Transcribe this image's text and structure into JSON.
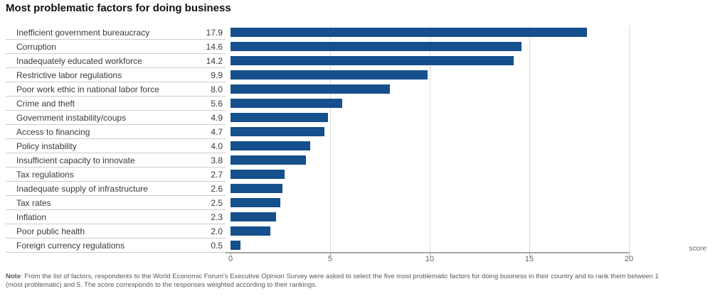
{
  "title": "Most problematic factors for doing business",
  "colors": {
    "bar": "#15508c",
    "gridline": "#dcdcdc",
    "axis_line": "#a6a6a6",
    "separator": "#cccccc",
    "label_text": "#3a3a3a",
    "tick_text": "#666666",
    "note_text": "#58595b"
  },
  "chart_data": {
    "type": "bar",
    "orientation": "horizontal",
    "title": "Most problematic factors for doing business",
    "xlabel": "score",
    "ylabel": "",
    "xlim": [
      0,
      20
    ],
    "xticks": [
      0,
      5,
      10,
      15,
      20
    ],
    "grid": true,
    "legend": false,
    "categories": [
      "Inefficient government bureaucracy",
      "Corruption",
      "Inadequately educated workforce",
      "Restrictive labor regulations",
      "Poor work ethic in national labor force",
      "Crime and theft",
      "Government instability/coups",
      "Access to financing",
      "Policy instability",
      "Insufficient capacity to innovate",
      "Tax regulations",
      "Inadequate supply of infrastructure",
      "Tax rates",
      "Inflation",
      "Poor public health",
      "Foreign currency regulations"
    ],
    "values": [
      17.9,
      14.6,
      14.2,
      9.9,
      8.0,
      5.6,
      4.9,
      4.7,
      4.0,
      3.8,
      2.7,
      2.6,
      2.5,
      2.3,
      2.0,
      0.5
    ],
    "value_labels": [
      "17.9",
      "14.6",
      "14.2",
      "9.9",
      "8.0",
      "5.6",
      "4.9",
      "4.7",
      "4.0",
      "3.8",
      "2.7",
      "2.6",
      "2.5",
      "2.3",
      "2.0",
      "0.5"
    ],
    "tick_labels": [
      "0",
      "5",
      "10",
      "15",
      "20"
    ]
  },
  "axis": {
    "unit_label": "score"
  },
  "footnote": {
    "label": "Note",
    "line1": ": From the list of factors, respondents to the World Economic Forum's Executive Opinion Survey were asked to select the five most problematic factors for doing business in their country and to rank them between 1",
    "line2": "(most problematic) and 5. The score corresponds to the responses weighted according to their rankings."
  }
}
